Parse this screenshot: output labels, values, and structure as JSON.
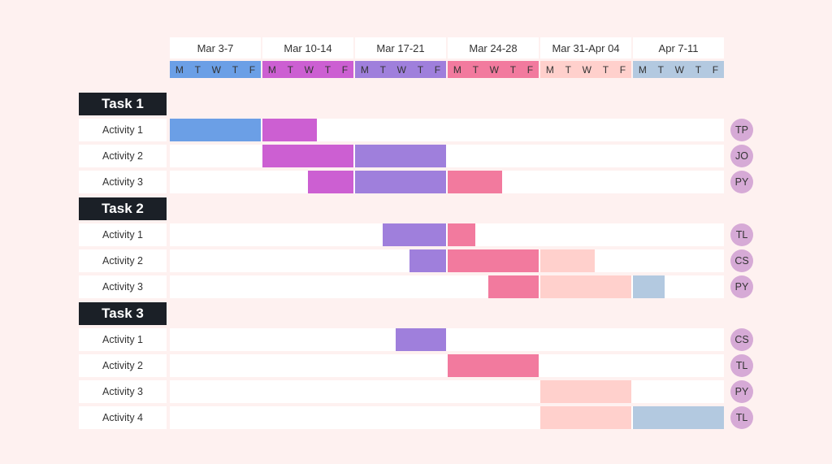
{
  "chart_data": {
    "type": "gantt",
    "weeks": [
      {
        "label": "Mar 3-7",
        "color": "#6b9fe6"
      },
      {
        "label": "Mar 10-14",
        "color": "#cc5fd2"
      },
      {
        "label": "Mar 17-21",
        "color": "#9f7fdc"
      },
      {
        "label": "Mar 24-28",
        "color": "#f27a9e"
      },
      {
        "label": "Mar 31-Apr 04",
        "color": "#ffd0cc"
      },
      {
        "label": "Apr 7-11",
        "color": "#b3c9e0"
      }
    ],
    "days": [
      "M",
      "T",
      "W",
      "T",
      "F"
    ],
    "tasks": [
      {
        "label": "Task 1",
        "activities": [
          {
            "label": "Activity 1",
            "assignee": "TP",
            "segments": [
              [
                0,
                5
              ],
              [
                5,
                8
              ]
            ]
          },
          {
            "label": "Activity 2",
            "assignee": "JO",
            "segments": [
              [
                5,
                10
              ],
              [
                10,
                15
              ]
            ]
          },
          {
            "label": "Activity 3",
            "assignee": "PY",
            "segments": [
              [
                7.5,
                10
              ],
              [
                10,
                15
              ],
              [
                15,
                18
              ]
            ]
          }
        ]
      },
      {
        "label": "Task 2",
        "activities": [
          {
            "label": "Activity 1",
            "assignee": "TL",
            "segments": [
              [
                11.5,
                15
              ],
              [
                15,
                16.5
              ]
            ]
          },
          {
            "label": "Activity 2",
            "assignee": "CS",
            "segments": [
              [
                13,
                15
              ],
              [
                15,
                20
              ],
              [
                20,
                23
              ]
            ]
          },
          {
            "label": "Activity 3",
            "assignee": "PY",
            "segments": [
              [
                17.25,
                20
              ],
              [
                20,
                25
              ],
              [
                25,
                26.75
              ]
            ]
          }
        ]
      },
      {
        "label": "Task 3",
        "activities": [
          {
            "label": "Activity 1",
            "assignee": "CS",
            "segments": [
              [
                12.25,
                15
              ]
            ]
          },
          {
            "label": "Activity 2",
            "assignee": "TL",
            "segments": [
              [
                15,
                20
              ]
            ]
          },
          {
            "label": "Activity 3",
            "assignee": "PY",
            "segments": [
              [
                20,
                25
              ]
            ]
          },
          {
            "label": "Activity 4",
            "assignee": "TL",
            "segments": [
              [
                20,
                25
              ],
              [
                25,
                30
              ]
            ]
          }
        ]
      }
    ]
  }
}
